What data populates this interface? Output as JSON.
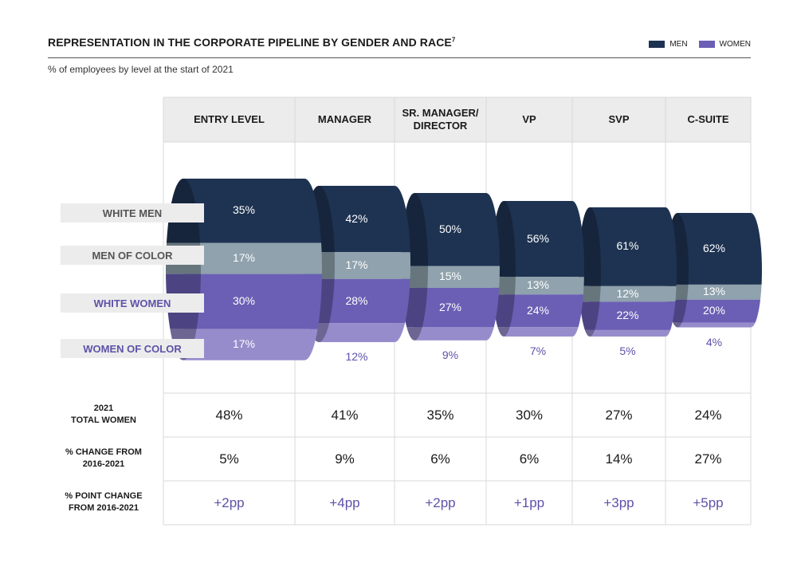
{
  "header": {
    "title": "REPRESENTATION IN THE CORPORATE PIPELINE BY GENDER AND RACE",
    "title_sup": "7",
    "subtitle": "% of employees by level at the start of 2021"
  },
  "legend": [
    {
      "label": "MEN",
      "color": "#1e3352"
    },
    {
      "label": "WOMEN",
      "color": "#6a5fb4"
    }
  ],
  "colors": {
    "white_men": "#1e3352",
    "men_of_color": "#8fa2ad",
    "white_women": "#6a5fb4",
    "women_of_color": "#978ccb",
    "header_bg": "#ececec",
    "row_label_men": "#555555",
    "row_label_women": "#5d52a8"
  },
  "row_labels": [
    "WHITE MEN",
    "MEN OF COLOR",
    "WHITE WOMEN",
    "WOMEN OF COLOR"
  ],
  "chart_data": {
    "type": "stacked-funnel",
    "categories": [
      "ENTRY LEVEL",
      "MANAGER",
      "SR. MANAGER/ DIRECTOR",
      "VP",
      "SVP",
      "C-SUITE"
    ],
    "series": [
      {
        "name": "WHITE MEN",
        "values": [
          35,
          42,
          50,
          56,
          61,
          62
        ]
      },
      {
        "name": "MEN OF COLOR",
        "values": [
          17,
          17,
          15,
          13,
          12,
          13
        ]
      },
      {
        "name": "WHITE WOMEN",
        "values": [
          30,
          28,
          27,
          24,
          22,
          20
        ]
      },
      {
        "name": "WOMEN OF COLOR",
        "values": [
          17,
          12,
          9,
          7,
          5,
          4
        ]
      }
    ],
    "value_labels": [
      [
        "35%",
        "42%",
        "50%",
        "56%",
        "61%",
        "62%"
      ],
      [
        "17%",
        "17%",
        "15%",
        "13%",
        "12%",
        "13%"
      ],
      [
        "30%",
        "28%",
        "27%",
        "24%",
        "22%",
        "20%"
      ],
      [
        "17%",
        "12%",
        "9%",
        "7%",
        "5%",
        "4%"
      ]
    ]
  },
  "table": {
    "rows": [
      {
        "label_lines": [
          "2021",
          "TOTAL WOMEN"
        ],
        "values": [
          "48%",
          "41%",
          "35%",
          "30%",
          "27%",
          "24%"
        ],
        "style": "plain"
      },
      {
        "label_lines": [
          "% CHANGE FROM",
          "2016-2021"
        ],
        "values": [
          "5%",
          "9%",
          "6%",
          "6%",
          "14%",
          "27%"
        ],
        "style": "plain"
      },
      {
        "label_lines": [
          "% POINT CHANGE",
          "FROM 2016-2021"
        ],
        "values": [
          "+2pp",
          "+4pp",
          "+2pp",
          "+1pp",
          "+3pp",
          "+5pp"
        ],
        "style": "pp"
      }
    ]
  }
}
